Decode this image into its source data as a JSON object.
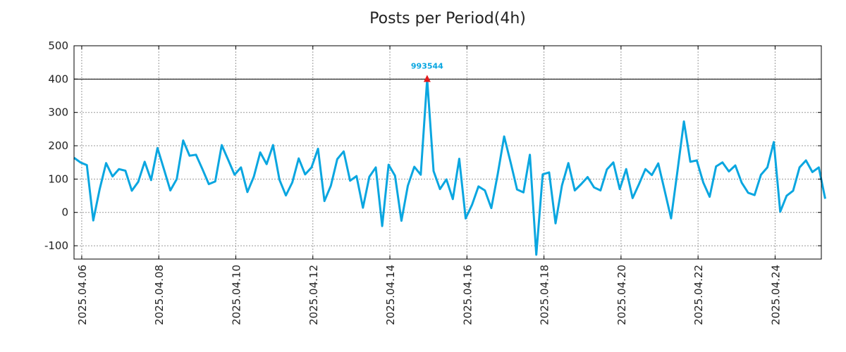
{
  "chart_data": {
    "type": "line",
    "title": "Posts per Period(4h)",
    "xlabel": "",
    "ylabel": "",
    "ylim": [
      -140,
      500
    ],
    "yticks": [
      -100,
      0,
      100,
      200,
      300,
      400,
      500
    ],
    "x_range_days": [
      5.8,
      25.2
    ],
    "x_origin_date": "2025.04.00",
    "xticks": [
      {
        "day": 6,
        "label": "2025.04.06"
      },
      {
        "day": 8,
        "label": "2025.04.08"
      },
      {
        "day": 10,
        "label": "2025.04.10"
      },
      {
        "day": 12,
        "label": "2025.04.12"
      },
      {
        "day": 14,
        "label": "2025.04.14"
      },
      {
        "day": 16,
        "label": "2025.04.16"
      },
      {
        "day": 18,
        "label": "2025.04.18"
      },
      {
        "day": 20,
        "label": "2025.04.20"
      },
      {
        "day": 22,
        "label": "2025.04.22"
      },
      {
        "day": 24,
        "label": "2025.04.24"
      }
    ],
    "grid": true,
    "reference_line": {
      "y": 400,
      "color": "#000000"
    },
    "series": [
      {
        "name": "posts",
        "color": "#0aa6e0",
        "x_start_day": 5.8,
        "step_days": 0.16667,
        "values": [
          164,
          150,
          142,
          -24,
          70,
          148,
          108,
          130,
          125,
          65,
          92,
          152,
          97,
          193,
          130,
          66,
          100,
          216,
          170,
          173,
          130,
          85,
          93,
          202,
          158,
          113,
          135,
          61,
          107,
          180,
          145,
          202,
          98,
          51,
          90,
          162,
          114,
          135,
          191,
          34,
          80,
          160,
          183,
          95,
          109,
          14,
          107,
          135,
          -41,
          143,
          110,
          -25,
          80,
          137,
          113,
          400,
          124,
          70,
          99,
          40,
          161,
          -18,
          23,
          78,
          66,
          13,
          115,
          228,
          150,
          69,
          60,
          173,
          -127,
          114,
          120,
          -33,
          81,
          148,
          66,
          85,
          106,
          75,
          66,
          129,
          150,
          70,
          130,
          43,
          85,
          130,
          112,
          147,
          65,
          -18,
          125,
          273,
          152,
          156,
          90,
          47,
          138,
          150,
          123,
          141,
          89,
          59,
          52,
          113,
          135,
          211,
          2,
          50,
          65,
          135,
          156,
          121,
          135,
          41
        ]
      }
    ],
    "annotation": {
      "label": "993544",
      "x_day": 14.967,
      "y": 400,
      "label_color": "#0aa6e0",
      "marker_color": "#e41a1c"
    }
  }
}
